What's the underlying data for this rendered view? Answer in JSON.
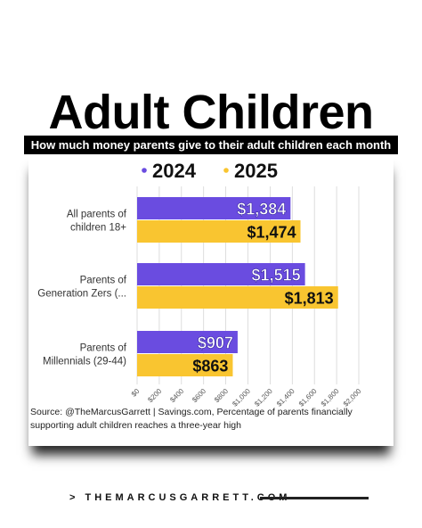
{
  "colors": {
    "series_2024": "#6a4ce0",
    "series_2025": "#f9c530",
    "grid": "#d6d6d6"
  },
  "chart_data": {
    "type": "bar",
    "orientation": "horizontal",
    "title": "Adult Children",
    "subtitle": "How much money parents give to their adult children each month",
    "categories": [
      [
        "All parents of",
        "children 18+"
      ],
      [
        "Parents of",
        "Generation Zers (..."
      ],
      [
        "Parents of",
        "Millennials (29-44)"
      ]
    ],
    "series": [
      {
        "name": "2024",
        "values": [
          1384,
          1515,
          907
        ],
        "labels": [
          "$1,384",
          "$1,515",
          "$907"
        ]
      },
      {
        "name": "2025",
        "values": [
          1474,
          1813,
          863
        ],
        "labels": [
          "$1,474",
          "$1,813",
          "$863"
        ]
      }
    ],
    "xlim": [
      0,
      2000
    ],
    "xticks": [
      "$0",
      "$200",
      "$400",
      "$600",
      "$800",
      "$1,000",
      "$1,200",
      "$1,400",
      "$1,600",
      "$1,800",
      "$2,000"
    ],
    "grid": true,
    "legend_position": "top-center",
    "source": "Source: @TheMarcusGarrett | Savings.com, Percentage of parents financially supporting adult children reaches a three-year high"
  },
  "footer": {
    "brand": "> THEMARCUSGARRETT.COM"
  }
}
